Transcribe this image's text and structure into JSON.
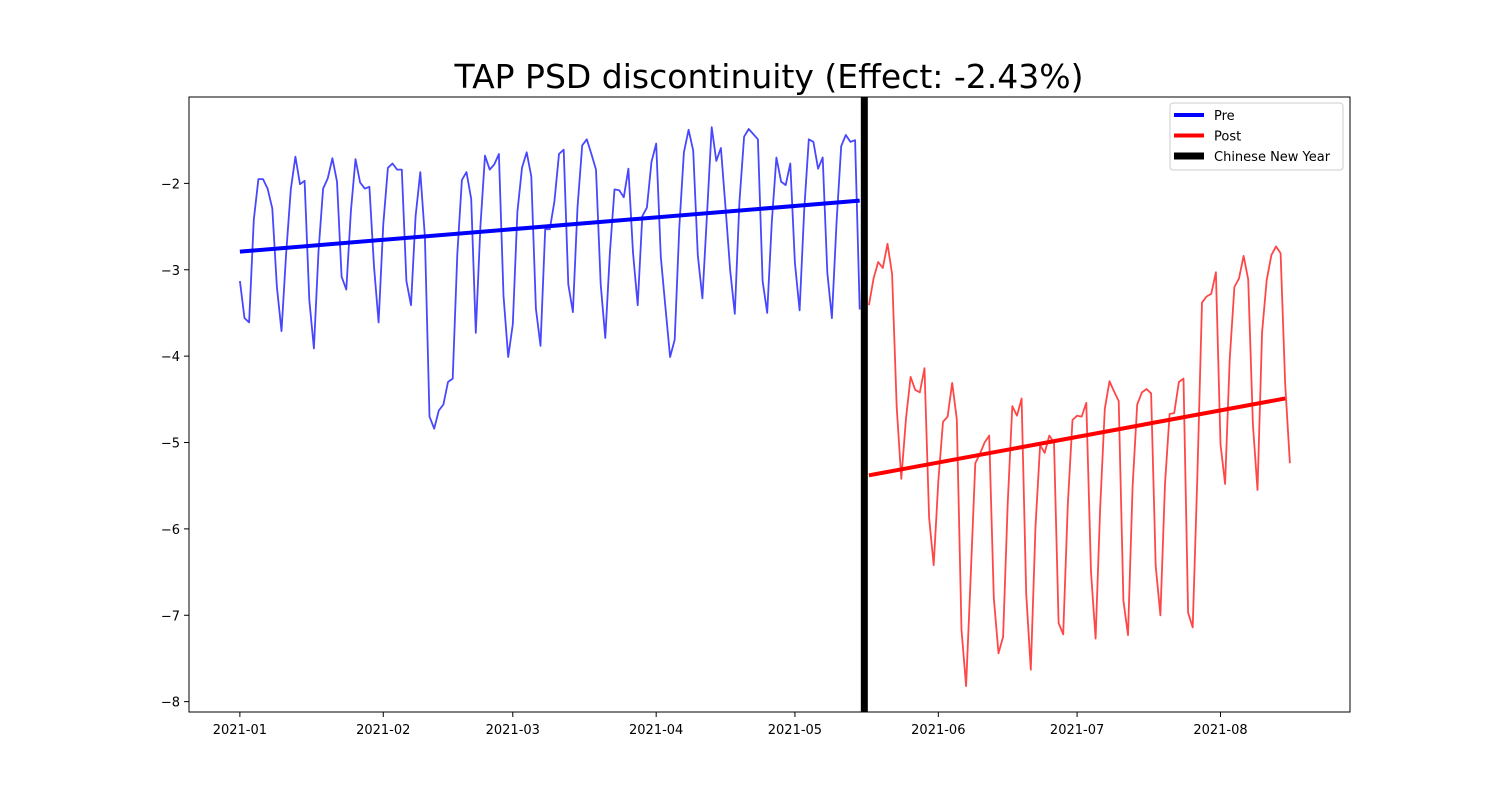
{
  "chart_data": {
    "type": "line",
    "title": "TAP PSD discontinuity (Effect: -2.43%)",
    "xlabel": "",
    "ylabel": "",
    "xlim": [
      "2020-12-21",
      "2021-08-29"
    ],
    "ylim": [
      -8.12,
      -1.0
    ],
    "x_ticks": [
      "2021-01",
      "2021-02",
      "2021-03",
      "2021-04",
      "2021-05",
      "2021-06",
      "2021-07",
      "2021-08"
    ],
    "y_ticks": [
      -8,
      -7,
      -6,
      -5,
      -4,
      -3,
      -2
    ],
    "grid": false,
    "legend_placement": "top-right",
    "series": [
      {
        "name": "Pre",
        "color": "#0000ff",
        "x_start": "2021-01-01",
        "values": [
          -3.13,
          -3.56,
          -3.61,
          -2.42,
          -1.95,
          -1.95,
          -2.06,
          -2.29,
          -3.2,
          -3.71,
          -2.82,
          -2.07,
          -1.69,
          -2.01,
          -1.97,
          -3.35,
          -3.91,
          -2.79,
          -2.06,
          -1.94,
          -1.71,
          -1.98,
          -3.08,
          -3.23,
          -2.32,
          -1.72,
          -1.99,
          -2.06,
          -2.04,
          -2.96,
          -3.61,
          -2.47,
          -1.82,
          -1.77,
          -1.84,
          -1.84,
          -3.13,
          -3.41,
          -2.38,
          -1.87,
          -2.62,
          -4.7,
          -4.84,
          -4.63,
          -4.56,
          -4.3,
          -4.26,
          -2.82,
          -1.96,
          -1.87,
          -2.18,
          -3.73,
          -2.5,
          -1.68,
          -1.84,
          -1.78,
          -1.66,
          -3.3,
          -4.01,
          -3.63,
          -2.33,
          -1.82,
          -1.64,
          -1.92,
          -3.45,
          -3.88,
          -2.53,
          -2.53,
          -2.21,
          -1.66,
          -1.61,
          -3.17,
          -3.49,
          -2.28,
          -1.56,
          -1.49,
          -1.66,
          -1.84,
          -3.17,
          -3.79,
          -2.8,
          -2.07,
          -2.08,
          -2.16,
          -1.83,
          -2.8,
          -3.41,
          -2.38,
          -2.28,
          -1.75,
          -1.54,
          -2.85,
          -3.43,
          -4.01,
          -3.81,
          -2.51,
          -1.64,
          -1.38,
          -1.62,
          -2.83,
          -3.33,
          -2.34,
          -1.35,
          -1.74,
          -1.59,
          -2.29,
          -3.01,
          -3.51,
          -2.22,
          -1.46,
          -1.37,
          -1.43,
          -1.49,
          -3.13,
          -3.5,
          -2.45,
          -1.7,
          -1.98,
          -2.02,
          -1.77,
          -2.92,
          -3.47,
          -2.31,
          -1.49,
          -1.52,
          -1.83,
          -1.7,
          -3.03,
          -3.56,
          -2.44,
          -1.57,
          -1.44,
          -1.52,
          -1.5,
          -3.46
        ]
      },
      {
        "name": "Post",
        "color": "#ff0000",
        "x_start": "2021-05-17",
        "values": [
          -3.41,
          -3.1,
          -2.91,
          -2.98,
          -2.7,
          -3.05,
          -4.59,
          -5.42,
          -4.72,
          -4.24,
          -4.39,
          -4.42,
          -4.14,
          -5.87,
          -6.42,
          -5.45,
          -4.76,
          -4.7,
          -4.31,
          -4.73,
          -7.17,
          -7.82,
          -6.55,
          -5.24,
          -5.13,
          -5.0,
          -4.92,
          -6.8,
          -7.44,
          -7.25,
          -5.71,
          -4.58,
          -4.69,
          -4.49,
          -6.75,
          -7.63,
          -5.97,
          -5.03,
          -5.12,
          -4.92,
          -5.0,
          -7.09,
          -7.22,
          -5.72,
          -4.74,
          -4.69,
          -4.7,
          -4.54,
          -6.5,
          -7.27,
          -5.75,
          -4.61,
          -4.29,
          -4.41,
          -4.52,
          -6.83,
          -7.23,
          -5.51,
          -4.56,
          -4.42,
          -4.38,
          -4.43,
          -6.43,
          -7.0,
          -5.48,
          -4.67,
          -4.66,
          -4.3,
          -4.26,
          -6.97,
          -7.14,
          -5.37,
          -3.38,
          -3.31,
          -3.28,
          -3.03,
          -5.02,
          -5.48,
          -4.04,
          -3.2,
          -3.1,
          -2.84,
          -3.11,
          -4.79,
          -5.55,
          -3.72,
          -3.12,
          -2.83,
          -2.73,
          -2.81,
          -4.33,
          -5.24
        ]
      },
      {
        "name": "Pre",
        "role": "trend",
        "color": "#0000ff",
        "x": [
          "2021-01-01",
          "2021-05-15"
        ],
        "y": [
          -2.79,
          -2.2
        ]
      },
      {
        "name": "Post",
        "role": "trend",
        "color": "#ff0000",
        "x": [
          "2021-05-17",
          "2021-08-15"
        ],
        "y": [
          -5.38,
          -4.49
        ]
      },
      {
        "name": "Chinese New Year",
        "role": "vertical-line",
        "color": "#000000",
        "x": "2021-05-16"
      }
    ],
    "legend": [
      {
        "label": "Pre",
        "color": "#0000ff"
      },
      {
        "label": "Post",
        "color": "#ff0000"
      },
      {
        "label": "Chinese New Year",
        "color": "#000000"
      }
    ]
  }
}
